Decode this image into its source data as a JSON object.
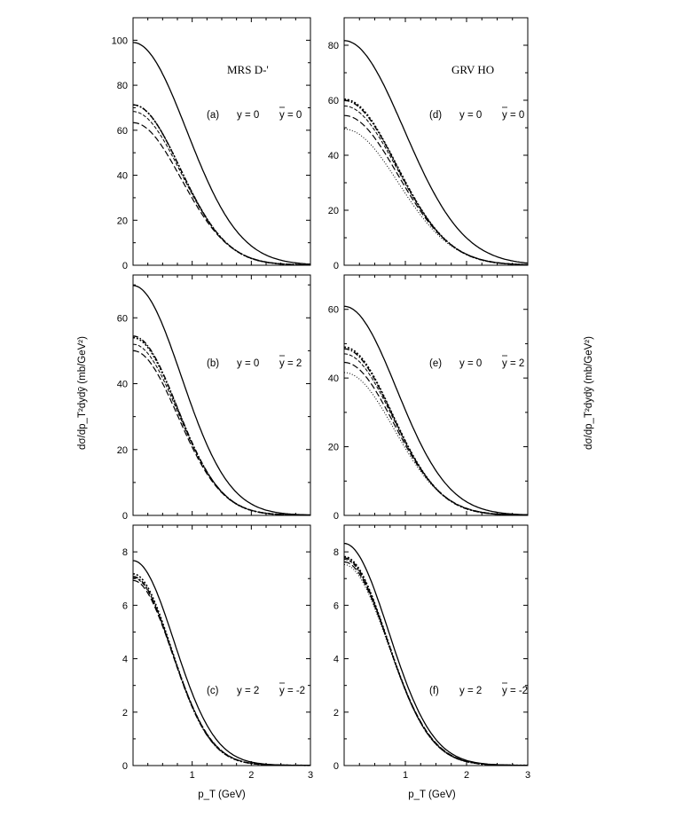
{
  "figure": {
    "ylabel": "dσ/dp_T²dydȳ (mb/GeV²)",
    "xlabel": "p_T (GeV)"
  },
  "chart_data": [
    {
      "type": "line",
      "id": "a",
      "title": "MRS D-'",
      "annotation": {
        "tag": "(a)",
        "y": "y = 0",
        "ybar": "y = 0"
      },
      "xlim": [
        0,
        3
      ],
      "ylim": [
        0,
        110
      ],
      "yticks": [
        0,
        20,
        40,
        60,
        80,
        100
      ],
      "xticks": [
        1,
        2,
        3
      ],
      "series": [
        {
          "style": "solid",
          "y0": 100,
          "w": 0.9
        },
        {
          "style": "dashdot",
          "y0": 72,
          "w": 0.79
        },
        {
          "style": "dotted",
          "y0": 72,
          "w": 0.79
        },
        {
          "style": "thindash",
          "y0": 69,
          "w": 0.8
        },
        {
          "style": "longdash",
          "y0": 64,
          "w": 0.81
        }
      ]
    },
    {
      "type": "line",
      "id": "d",
      "title": "GRV HO",
      "annotation": {
        "tag": "(d)",
        "y": "y = 0",
        "ybar": "y = 0"
      },
      "xlim": [
        0,
        3
      ],
      "ylim": [
        0,
        90
      ],
      "yticks": [
        0,
        20,
        40,
        60,
        80
      ],
      "xticks": [
        1,
        2,
        3
      ],
      "series": [
        {
          "style": "solid",
          "y0": 82.5,
          "w": 0.97
        },
        {
          "style": "dotted",
          "y0": 61,
          "w": 0.85
        },
        {
          "style": "dashdot",
          "y0": 60.5,
          "w": 0.85
        },
        {
          "style": "thindash",
          "y0": 58.5,
          "w": 0.86
        },
        {
          "style": "longdash",
          "y0": 55,
          "w": 0.87
        },
        {
          "style": "finedot",
          "y0": 50,
          "w": 0.88
        }
      ]
    },
    {
      "type": "line",
      "id": "b",
      "title": "",
      "annotation": {
        "tag": "(b)",
        "y": "y = 0",
        "ybar": "y = 2"
      },
      "xlim": [
        0,
        3
      ],
      "ylim": [
        0,
        73
      ],
      "yticks": [
        0,
        20,
        40,
        60
      ],
      "xticks": [
        1,
        2,
        3
      ],
      "series": [
        {
          "style": "solid",
          "y0": 70.5,
          "w": 0.81
        },
        {
          "style": "dashdot",
          "y0": 55,
          "w": 0.74
        },
        {
          "style": "dotted",
          "y0": 54.5,
          "w": 0.74
        },
        {
          "style": "thindash",
          "y0": 52.5,
          "w": 0.75
        },
        {
          "style": "longdash",
          "y0": 50.5,
          "w": 0.75
        }
      ]
    },
    {
      "type": "line",
      "id": "e",
      "title": "",
      "annotation": {
        "tag": "(e)",
        "y": "y = 0",
        "ybar": "y = 2"
      },
      "xlim": [
        0,
        3
      ],
      "ylim": [
        0,
        70
      ],
      "yticks": [
        0,
        20,
        40,
        60
      ],
      "xticks": [
        1,
        2,
        3
      ],
      "series": [
        {
          "style": "solid",
          "y0": 61.5,
          "w": 0.85
        },
        {
          "style": "dotted",
          "y0": 49.5,
          "w": 0.78
        },
        {
          "style": "dashdot",
          "y0": 49,
          "w": 0.78
        },
        {
          "style": "thindash",
          "y0": 47.5,
          "w": 0.79
        },
        {
          "style": "longdash",
          "y0": 45,
          "w": 0.8
        },
        {
          "style": "finedot",
          "y0": 42,
          "w": 0.81
        }
      ]
    },
    {
      "type": "line",
      "id": "c",
      "title": "",
      "annotation": {
        "tag": "(c)",
        "y": "y = 2",
        "ybar": "y = -2"
      },
      "xlim": [
        0,
        3
      ],
      "ylim": [
        0,
        9
      ],
      "yticks": [
        0,
        2,
        4,
        6,
        8
      ],
      "xticks": [
        1,
        2,
        3
      ],
      "series": [
        {
          "style": "solid",
          "y0": 7.75,
          "w": 0.69
        },
        {
          "style": "dotted",
          "y0": 7.25,
          "w": 0.65
        },
        {
          "style": "dashdot",
          "y0": 7.15,
          "w": 0.65
        },
        {
          "style": "thindash",
          "y0": 7.1,
          "w": 0.66
        },
        {
          "style": "longdash",
          "y0": 7.0,
          "w": 0.66
        }
      ]
    },
    {
      "type": "line",
      "id": "f",
      "title": "",
      "annotation": {
        "tag": "(f)",
        "y": "y = 2",
        "ybar": "y = -2"
      },
      "xlim": [
        0,
        3
      ],
      "ylim": [
        0,
        9
      ],
      "yticks": [
        0,
        2,
        4,
        6,
        8
      ],
      "xticks": [
        1,
        2,
        3
      ],
      "series": [
        {
          "style": "solid",
          "y0": 8.4,
          "w": 0.72
        },
        {
          "style": "dotted",
          "y0": 7.9,
          "w": 0.7
        },
        {
          "style": "dashdot",
          "y0": 7.85,
          "w": 0.7
        },
        {
          "style": "thindash",
          "y0": 7.8,
          "w": 0.7
        },
        {
          "style": "longdash",
          "y0": 7.7,
          "w": 0.71
        },
        {
          "style": "finedot",
          "y0": 7.6,
          "w": 0.71
        }
      ]
    }
  ]
}
